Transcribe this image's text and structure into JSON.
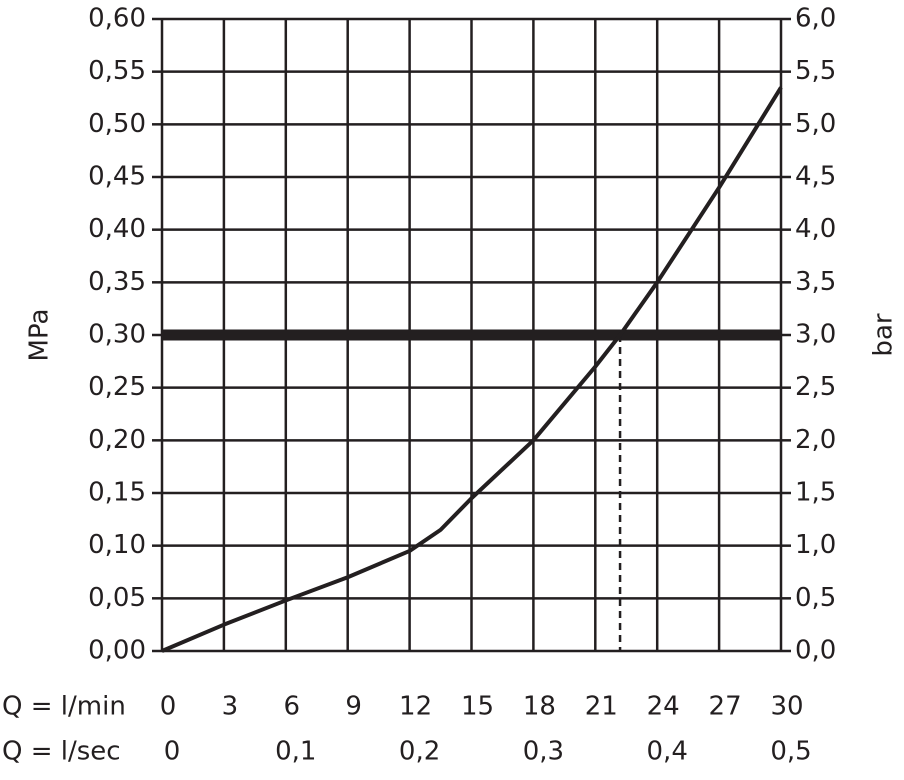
{
  "chart_data": {
    "type": "line",
    "y_label": "MPa",
    "y2_label": "bar",
    "x_label": "Q = l/min",
    "x2_label": "Q = l/sec",
    "xlim": [
      0,
      30
    ],
    "xticks": [
      0,
      3,
      6,
      9,
      12,
      15,
      18,
      21,
      24,
      27,
      30
    ],
    "x2lim": [
      0,
      0.5
    ],
    "x2ticks": [
      0,
      {
        "value": 0.1,
        "label": "0,1"
      },
      {
        "value": 0.2,
        "label": "0,2"
      },
      {
        "value": 0.3,
        "label": "0,3"
      },
      {
        "value": 0.4,
        "label": "0,4"
      },
      {
        "value": 0.5,
        "label": "0,5"
      }
    ],
    "ylim": [
      0,
      0.6
    ],
    "yticks": [
      {
        "value": 0,
        "label": "0,00"
      },
      {
        "value": 0.05,
        "label": "0,05"
      },
      {
        "value": 0.1,
        "label": "0,10"
      },
      {
        "value": 0.15,
        "label": "0,15"
      },
      {
        "value": 0.2,
        "label": "0,20"
      },
      {
        "value": 0.25,
        "label": "0,25"
      },
      {
        "value": 0.3,
        "label": "0,30"
      },
      {
        "value": 0.35,
        "label": "0,35"
      },
      {
        "value": 0.4,
        "label": "0,40"
      },
      {
        "value": 0.45,
        "label": "0,45"
      },
      {
        "value": 0.5,
        "label": "0,50"
      },
      {
        "value": 0.55,
        "label": "0,55"
      },
      {
        "value": 0.6,
        "label": "0,60"
      }
    ],
    "y2lim": [
      0,
      6
    ],
    "y2ticks": [
      {
        "value": 0,
        "label": "0,0"
      },
      {
        "value": 0.5,
        "label": "0,5"
      },
      {
        "value": 1,
        "label": "1,0"
      },
      {
        "value": 1.5,
        "label": "1,5"
      },
      {
        "value": 2,
        "label": "2,0"
      },
      {
        "value": 2.5,
        "label": "2,5"
      },
      {
        "value": 3,
        "label": "3,0"
      },
      {
        "value": 3.5,
        "label": "3,5"
      },
      {
        "value": 4,
        "label": "4,0"
      },
      {
        "value": 4.5,
        "label": "4,5"
      },
      {
        "value": 5,
        "label": "5,0"
      },
      {
        "value": 5.5,
        "label": "5,5"
      },
      {
        "value": 6,
        "label": "6,0"
      }
    ],
    "grid": true,
    "series": [
      {
        "color": "#231f20",
        "x": [
          0,
          3,
          6,
          9,
          12,
          13.5,
          15,
          18,
          21,
          22.2,
          24,
          27,
          30
        ],
        "values": [
          0,
          0.025,
          0.048,
          0.07,
          0.095,
          0.115,
          0.145,
          0.2,
          0.27,
          0.3,
          0.35,
          0.44,
          0.535
        ]
      }
    ],
    "reference_line": {
      "y": 0.3,
      "color": "#231f20"
    },
    "drop_line": {
      "x": 22.2
    }
  }
}
